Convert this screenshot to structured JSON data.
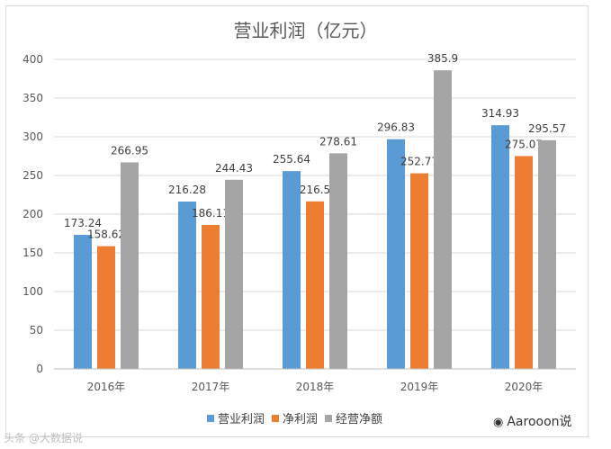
{
  "chart_data": {
    "type": "bar",
    "title": "营业利润（亿元）",
    "categories": [
      "2016年",
      "2017年",
      "2018年",
      "2019年",
      "2020年"
    ],
    "series": [
      {
        "name": "营业利润",
        "color": "#5b9bd5",
        "values": [
          173.24,
          216.28,
          255.64,
          296.83,
          314.93
        ],
        "labels": [
          "173.24",
          "216.28",
          "255.64",
          "296.83",
          "314.93"
        ]
      },
      {
        "name": "净利润",
        "color": "#ed7d31",
        "values": [
          158.62,
          186.11,
          216.5,
          252.77,
          275.07
        ],
        "labels": [
          "158.62",
          "186.11",
          "216.5",
          "252.77",
          "275.07"
        ]
      },
      {
        "name": "经营净额",
        "color": "#a5a5a5",
        "values": [
          266.95,
          244.43,
          278.61,
          385.9,
          295.57
        ],
        "labels": [
          "266.95",
          "244.43",
          "278.61",
          "385.9",
          "295.57"
        ]
      }
    ],
    "ylim": [
      0,
      400
    ],
    "yticks": [
      0,
      50,
      100,
      150,
      200,
      250,
      300,
      350,
      400
    ],
    "grid": true,
    "legend": "bottom"
  },
  "watermark": {
    "left": "头条 @大数据说",
    "right": "Aarooon说"
  }
}
